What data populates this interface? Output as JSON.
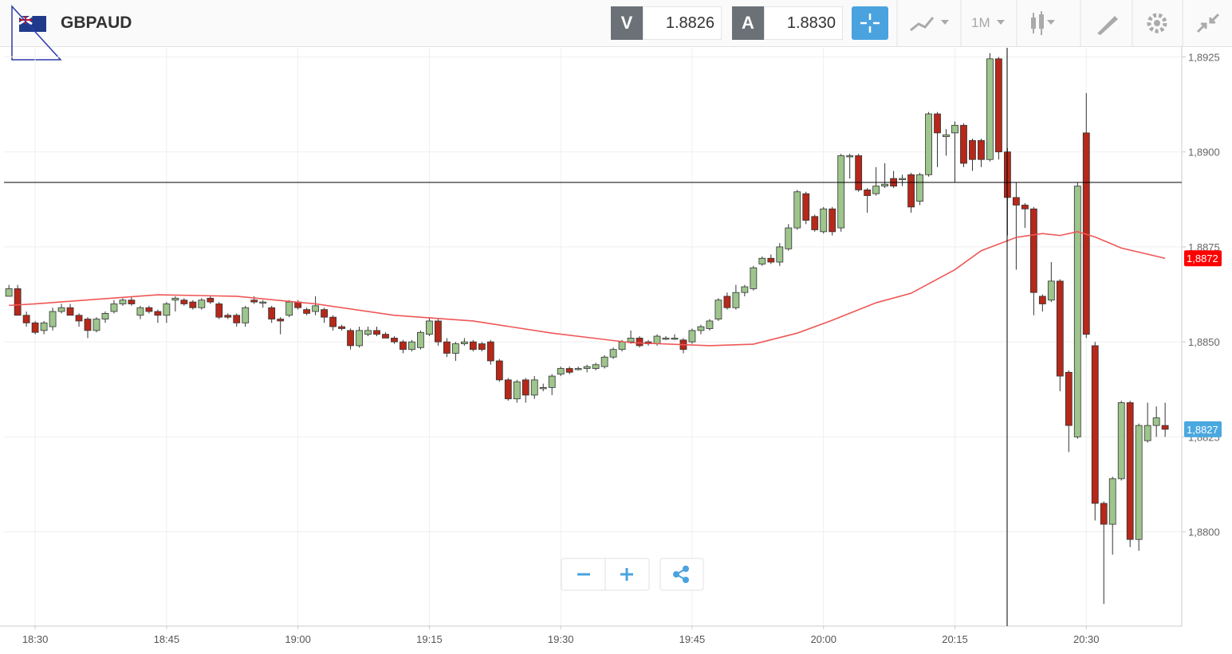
{
  "header": {
    "symbol": "GBPAUD",
    "bid_label": "V",
    "bid": "1.8826",
    "ask_label": "A",
    "ask": "1.8830",
    "timeframe": "1M"
  },
  "chart_data": {
    "type": "candlestick",
    "x": [
      1107,
      1108,
      1109,
      1110,
      1111,
      1112,
      1113,
      1114,
      1115,
      1116,
      1117,
      1118,
      1119,
      1120,
      1121,
      1122,
      1123,
      1124,
      1125,
      1126,
      1127,
      1128,
      1129,
      1130,
      1131,
      1132,
      1133,
      1134,
      1135,
      1136,
      1137,
      1138,
      1139,
      1140,
      1141,
      1142,
      1143,
      1144,
      1145,
      1146,
      1147,
      1148,
      1149,
      1150,
      1151,
      1152,
      1153,
      1154,
      1155,
      1156,
      1157,
      1158,
      1159,
      1160,
      1161,
      1162,
      1163,
      1164,
      1165,
      1166,
      1167,
      1168,
      1169,
      1170,
      1171,
      1172,
      1173,
      1174,
      1175,
      1176,
      1177,
      1178,
      1179,
      1180,
      1181,
      1182,
      1183,
      1184,
      1185,
      1186,
      1187,
      1188,
      1189,
      1190,
      1191,
      1192,
      1193,
      1194,
      1195,
      1196,
      1197,
      1198,
      1199,
      1200,
      1201,
      1202,
      1203,
      1204,
      1205,
      1206,
      1207,
      1208,
      1209,
      1210,
      1211,
      1212,
      1213,
      1214,
      1215,
      1216,
      1217,
      1218,
      1219,
      1220,
      1221,
      1222,
      1223,
      1224,
      1225,
      1226,
      1227,
      1228,
      1229,
      1230,
      1231,
      1232,
      1233,
      1234,
      1235,
      1236,
      1237,
      1238,
      1239
    ],
    "open": [
      1.8862,
      1.8864,
      1.8857,
      1.8855,
      1.8853,
      1.8854,
      1.8858,
      1.8859,
      1.8857,
      1.8856,
      1.8853,
      1.8856,
      1.8858,
      1.886,
      1.8861,
      1.8857,
      1.8859,
      1.8858,
      1.8857,
      1.8861,
      1.8861,
      1.88605,
      1.8859,
      1.88615,
      1.886,
      1.8857,
      1.8857,
      1.8855,
      1.8861,
      1.88605,
      1.8859,
      1.8856,
      1.8857,
      1.88605,
      1.88585,
      1.8858,
      1.88585,
      1.88565,
      1.8854,
      1.8853,
      1.8849,
      1.8852,
      1.8853,
      1.8852,
      1.8851,
      1.885,
      1.8848,
      1.88485,
      1.8852,
      1.88555,
      1.885,
      1.8847,
      1.88495,
      1.885,
      1.88495,
      1.885,
      1.8845,
      1.884,
      1.8835,
      1.884,
      1.8836,
      1.8838,
      1.8838,
      1.88415,
      1.8843,
      1.8843,
      1.8843,
      1.8843,
      1.88435,
      1.8846,
      1.8848,
      1.885,
      1.8851,
      1.885,
      1.88495,
      1.8851,
      1.8851,
      1.88505,
      1.885,
      1.8853,
      1.88535,
      1.8856,
      1.8862,
      1.8859,
      1.8863,
      1.8864,
      1.88705,
      1.8872,
      1.8871,
      1.88745,
      1.888,
      1.8889,
      1.8883,
      1.8879,
      1.8885,
      1.888,
      1.8899,
      1.8899,
      1.889,
      1.8889,
      1.8891,
      1.8893,
      1.8893,
      1.8894,
      1.8887,
      1.8894,
      1.891,
      1.8904,
      1.8905,
      1.8907,
      1.8903,
      1.8903,
      1.8898,
      1.89245,
      1.89,
      1.8888,
      1.8886,
      1.8885,
      1.8862,
      1.8861,
      1.8866,
      1.8842,
      1.8825,
      1.8905,
      1.8849,
      1.88075,
      1.8802,
      1.8814,
      1.8834,
      1.8798,
      1.8824,
      1.8828,
      1.8828
    ],
    "high": [
      1.8865,
      1.8865,
      1.8858,
      1.88555,
      1.88555,
      1.8859,
      1.886,
      1.886,
      1.88575,
      1.88565,
      1.88565,
      1.8858,
      1.8861,
      1.88615,
      1.8862,
      1.88595,
      1.88595,
      1.88585,
      1.88605,
      1.8862,
      1.88615,
      1.8861,
      1.88615,
      1.8862,
      1.88605,
      1.88575,
      1.88575,
      1.88595,
      1.8862,
      1.8861,
      1.88595,
      1.88565,
      1.8861,
      1.8861,
      1.8859,
      1.8862,
      1.8859,
      1.8857,
      1.88545,
      1.88535,
      1.8854,
      1.8854,
      1.8854,
      1.88525,
      1.88515,
      1.88505,
      1.88505,
      1.8853,
      1.88565,
      1.8856,
      1.8851,
      1.885,
      1.8851,
      1.88505,
      1.885,
      1.88505,
      1.88455,
      1.88405,
      1.884,
      1.88405,
      1.8841,
      1.8839,
      1.88415,
      1.88435,
      1.88435,
      1.88435,
      1.8844,
      1.88445,
      1.88465,
      1.88485,
      1.88505,
      1.8853,
      1.88515,
      1.88505,
      1.8852,
      1.88515,
      1.8852,
      1.8851,
      1.88535,
      1.88545,
      1.8856,
      1.88615,
      1.8863,
      1.8865,
      1.8865,
      1.887,
      1.88725,
      1.8873,
      1.8876,
      1.8881,
      1.889,
      1.88895,
      1.88835,
      1.88855,
      1.88855,
      1.88995,
      1.88995,
      1.88995,
      1.88905,
      1.8896,
      1.8897,
      1.8895,
      1.8894,
      1.88945,
      1.88945,
      1.89105,
      1.89105,
      1.8906,
      1.8908,
      1.89075,
      1.89035,
      1.89035,
      1.8926,
      1.8925,
      1.8901,
      1.8892,
      1.88865,
      1.88855,
      1.88625,
      1.8871,
      1.88665,
      1.88425,
      1.8892,
      1.89155,
      1.885,
      1.8808,
      1.88145,
      1.88345,
      1.88345,
      1.88285,
      1.8834,
      1.8833,
      1.8834
    ],
    "low": [
      1.8862,
      1.8857,
      1.8854,
      1.8852,
      1.8852,
      1.8853,
      1.88575,
      1.8857,
      1.8854,
      1.8851,
      1.88525,
      1.8855,
      1.88575,
      1.88595,
      1.88595,
      1.8856,
      1.88575,
      1.8855,
      1.8855,
      1.8858,
      1.88595,
      1.88585,
      1.88585,
      1.886,
      1.8856,
      1.8856,
      1.8854,
      1.8854,
      1.886,
      1.8859,
      1.8855,
      1.8852,
      1.88565,
      1.88585,
      1.8857,
      1.8857,
      1.8855,
      1.8853,
      1.8853,
      1.8848,
      1.88485,
      1.88515,
      1.88515,
      1.8851,
      1.88495,
      1.8847,
      1.88475,
      1.8848,
      1.88515,
      1.8849,
      1.8846,
      1.8845,
      1.8849,
      1.88475,
      1.88475,
      1.8844,
      1.88395,
      1.88345,
      1.8834,
      1.8834,
      1.8835,
      1.8837,
      1.8836,
      1.8841,
      1.88415,
      1.88425,
      1.8842,
      1.88425,
      1.8843,
      1.88455,
      1.88475,
      1.88495,
      1.88485,
      1.8849,
      1.8849,
      1.88505,
      1.88505,
      1.8847,
      1.88495,
      1.8852,
      1.8853,
      1.88555,
      1.88585,
      1.88585,
      1.8862,
      1.88635,
      1.887,
      1.88705,
      1.887,
      1.8874,
      1.88795,
      1.8881,
      1.8879,
      1.88785,
      1.8878,
      1.8879,
      1.8893,
      1.88895,
      1.8884,
      1.88885,
      1.88905,
      1.88905,
      1.8891,
      1.8884,
      1.8886,
      1.88935,
      1.8896,
      1.8899,
      1.8892,
      1.8896,
      1.8895,
      1.8896,
      1.88975,
      1.8898,
      1.8878,
      1.8869,
      1.888,
      1.8857,
      1.8858,
      1.88605,
      1.8837,
      1.8821,
      1.88245,
      1.8851,
      1.8803,
      1.8781,
      1.8794,
      1.88135,
      1.8796,
      1.8795,
      1.88235,
      1.8825,
      1.8825
    ],
    "close": [
      1.8864,
      1.8857,
      1.8855,
      1.88525,
      1.8855,
      1.8858,
      1.8859,
      1.8857,
      1.88555,
      1.8853,
      1.8856,
      1.88575,
      1.886,
      1.8861,
      1.886,
      1.8859,
      1.8858,
      1.8857,
      1.886,
      1.88615,
      1.886,
      1.8859,
      1.8861,
      1.88605,
      1.88565,
      1.88565,
      1.8855,
      1.8859,
      1.88605,
      1.88605,
      1.8856,
      1.88555,
      1.88605,
      1.8859,
      1.88575,
      1.88595,
      1.88565,
      1.8854,
      1.88535,
      1.8849,
      1.8853,
      1.8853,
      1.8852,
      1.8851,
      1.885,
      1.8848,
      1.885,
      1.88525,
      1.88555,
      1.885,
      1.8847,
      1.88495,
      1.885,
      1.8848,
      1.8848,
      1.8845,
      1.884,
      1.8835,
      1.88395,
      1.8836,
      1.884,
      1.8838,
      1.8841,
      1.8843,
      1.8842,
      1.8843,
      1.88435,
      1.8844,
      1.8846,
      1.8848,
      1.885,
      1.8851,
      1.8849,
      1.88495,
      1.88515,
      1.8851,
      1.8851,
      1.8848,
      1.8853,
      1.8854,
      1.88555,
      1.8861,
      1.8859,
      1.8863,
      1.88645,
      1.88695,
      1.8872,
      1.8871,
      1.8875,
      1.888,
      1.88895,
      1.8882,
      1.88795,
      1.8885,
      1.8879,
      1.8899,
      1.8899,
      1.889,
      1.88885,
      1.8891,
      1.88915,
      1.8891,
      1.8893,
      1.88855,
      1.8894,
      1.891,
      1.8905,
      1.89045,
      1.8907,
      1.8897,
      1.8898,
      1.8898,
      1.89245,
      1.89,
      1.8888,
      1.8886,
      1.8885,
      1.8863,
      1.886,
      1.8866,
      1.8841,
      1.8828,
      1.8891,
      1.8852,
      1.88075,
      1.8802,
      1.8814,
      1.8834,
      1.8798,
      1.8828,
      1.8828,
      1.883,
      1.8827
    ],
    "up_color": "#9dc58c",
    "down_color": "#b5281a",
    "ma": {
      "color": "#f05656",
      "x": [
        1107,
        1110,
        1124,
        1133,
        1142,
        1151,
        1160,
        1169,
        1178,
        1187,
        1192,
        1197,
        1201,
        1206,
        1210,
        1215,
        1218,
        1222,
        1225,
        1227,
        1229,
        1231,
        1234,
        1239
      ],
      "values": [
        1.88596,
        1.886,
        1.88624,
        1.8862,
        1.886,
        1.8857,
        1.88555,
        1.88523,
        1.88498,
        1.8849,
        1.88494,
        1.88523,
        1.88557,
        1.88603,
        1.88628,
        1.8869,
        1.8874,
        1.88775,
        1.88785,
        1.8878,
        1.8879,
        1.88776,
        1.88747,
        1.8872
      ]
    },
    "price_labels": [
      {
        "value": 1.8872,
        "label": "1,8872",
        "color": "#ff0000"
      },
      {
        "value": 1.8827,
        "label": "1,8827",
        "color": "#4aa8e0"
      }
    ],
    "ylim": [
      1.87754,
      1.89274
    ],
    "yticks": [
      {
        "value": 1.88,
        "label": "1,8800"
      },
      {
        "value": 1.8825,
        "label": "1,8825"
      },
      {
        "value": 1.885,
        "label": "1,8850"
      },
      {
        "value": 1.8875,
        "label": "1,8875"
      },
      {
        "value": 1.89,
        "label": "1,8900"
      },
      {
        "value": 1.8925,
        "label": "1,8925"
      }
    ],
    "xlim": [
      1106.44,
      1240.9
    ],
    "xticks": [
      {
        "value": 1110,
        "label": "18:30"
      },
      {
        "value": 1125,
        "label": "18:45"
      },
      {
        "value": 1140,
        "label": "19:00"
      },
      {
        "value": 1155,
        "label": "19:15"
      },
      {
        "value": 1170,
        "label": "19:30"
      },
      {
        "value": 1185,
        "label": "19:45"
      },
      {
        "value": 1200,
        "label": "20:00"
      },
      {
        "value": 1215,
        "label": "20:15"
      },
      {
        "value": 1230,
        "label": "20:30"
      }
    ],
    "grid": true
  }
}
